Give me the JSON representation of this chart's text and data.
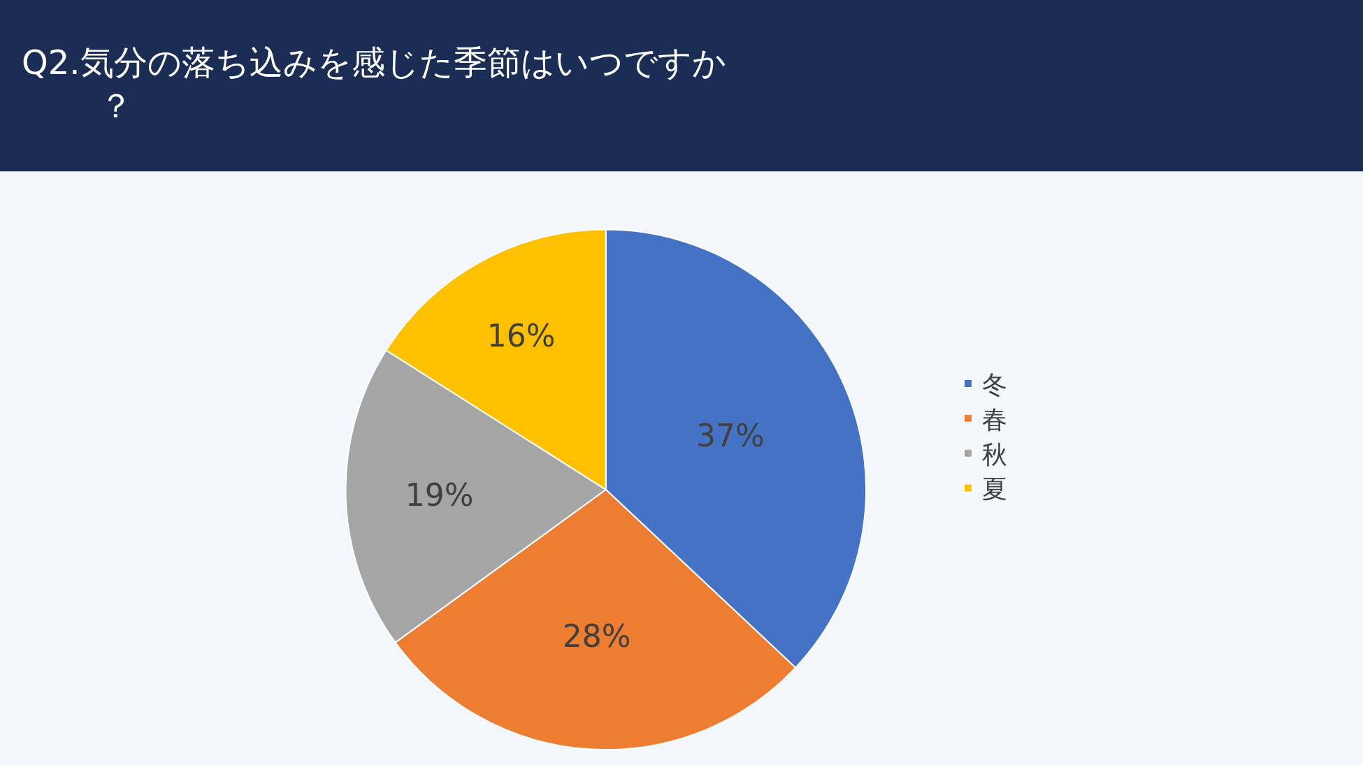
{
  "chart_data": {
    "type": "pie",
    "title": "Q2.気分の落ち込みを感じた季節はいつですか？",
    "categories": [
      "冬",
      "春",
      "秋",
      "夏"
    ],
    "values": [
      37,
      28,
      19,
      16
    ],
    "value_labels": [
      "37%",
      "28%",
      "19%",
      "16%"
    ],
    "colors": [
      "#4472c4",
      "#ed7d31",
      "#a5a5a5",
      "#ffc000"
    ],
    "legend": "right"
  }
}
